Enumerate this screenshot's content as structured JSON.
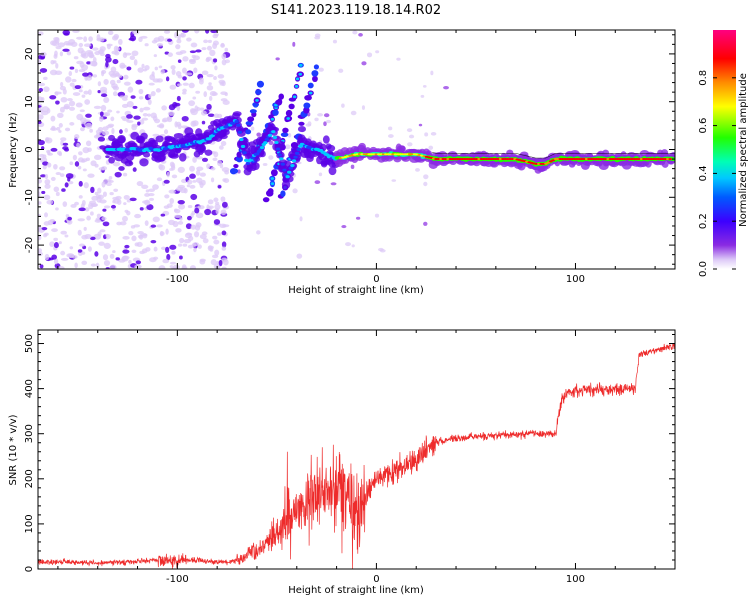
{
  "figure_title": "S141.2023.119.18.14.R02",
  "colors": {
    "snr_line": "#ee2b2b",
    "spectrogram_colormap": [
      "#ffffff",
      "#dcc8f7",
      "#8a2be2",
      "#5a00e6",
      "#1e3cff",
      "#00c8ff",
      "#00ffb4",
      "#22ff00",
      "#ffff00",
      "#ff8c00",
      "#ff0000",
      "#ff0080"
    ]
  },
  "chart_data": [
    {
      "type": "heatmap",
      "xlabel": "Height of straight line (km)",
      "ylabel": "Frequency (Hz)",
      "xlim": [
        -170,
        150
      ],
      "ylim": [
        -25,
        25
      ],
      "x_ticks": [
        -100,
        0,
        100
      ],
      "y_ticks": [
        -20,
        -10,
        0,
        10,
        20
      ],
      "colorbar": {
        "label": "Normalized spectral amplitude",
        "range": [
          0,
          1
        ],
        "ticks": [
          0.0,
          0.2,
          0.4,
          0.6,
          0.8
        ]
      },
      "ridge": {
        "description_of_values": "estimated dominant frequency (Hz) vs height (km)",
        "x": [
          -130,
          -110,
          -95,
          -85,
          -80,
          -70,
          -65,
          -58,
          -52,
          -45,
          -38,
          -30,
          -20,
          -10,
          0,
          10,
          20,
          30,
          50,
          70,
          80,
          85,
          90,
          100,
          120,
          148
        ],
        "y": [
          0,
          0,
          1,
          2,
          4,
          6,
          -3,
          0,
          4,
          -6,
          1,
          0,
          -2,
          -1,
          -1,
          -1,
          -1,
          -2,
          -2,
          -2,
          -3,
          -3,
          -2,
          -2,
          -2,
          -2
        ]
      },
      "diagonal_streaks": [
        {
          "x": [
            -72,
            -58
          ],
          "y": [
            -5,
            13
          ]
        },
        {
          "x": [
            -62,
            -48
          ],
          "y": [
            -3,
            11
          ]
        },
        {
          "x": [
            -55,
            -38
          ],
          "y": [
            -11,
            17
          ]
        },
        {
          "x": [
            -48,
            -30
          ],
          "y": [
            -10,
            17
          ]
        }
      ],
      "grid": false
    },
    {
      "type": "line",
      "xlabel": "Height of straight line (km)",
      "ylabel": "SNR (10 * v/v)",
      "xlim": [
        -170,
        150
      ],
      "ylim": [
        0,
        530
      ],
      "x_ticks": [
        -100,
        0,
        100
      ],
      "y_ticks": [
        0,
        100,
        200,
        300,
        400,
        500
      ],
      "grid": false,
      "series": [
        {
          "x": [
            -170,
            -150,
            -130,
            -110,
            -90,
            -75,
            -70,
            -60,
            -50,
            -40,
            -30,
            -20,
            -15,
            -10,
            -5,
            0,
            10,
            20,
            25,
            30,
            40,
            60,
            80,
            90,
            93,
            95,
            100,
            120,
            130,
            132,
            140,
            150
          ],
          "values": [
            15,
            15,
            14,
            20,
            20,
            15,
            20,
            40,
            80,
            130,
            170,
            190,
            160,
            120,
            170,
            200,
            215,
            240,
            265,
            280,
            290,
            295,
            300,
            300,
            375,
            390,
            395,
            400,
            400,
            475,
            485,
            495
          ]
        }
      ]
    }
  ]
}
